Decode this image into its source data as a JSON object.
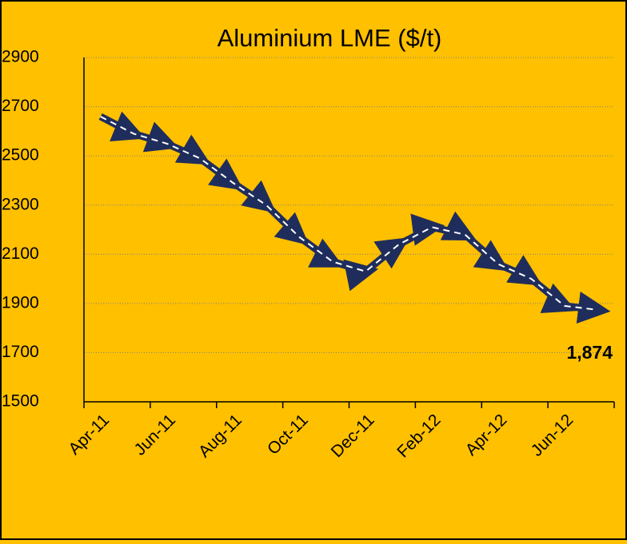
{
  "chart_data": {
    "type": "line",
    "title": "Aluminium LME ($/t)",
    "categories": [
      "Apr-11",
      null,
      "Jun-11",
      null,
      "Aug-11",
      null,
      "Oct-11",
      null,
      "Dec-11",
      null,
      "Feb-12",
      null,
      "Apr-12",
      null,
      "Jun-12",
      null
    ],
    "series": [
      {
        "name": "Aluminium LME",
        "color": "#1f2d5c",
        "values": [
          2660,
          2590,
          2550,
          2490,
          2390,
          2300,
          2170,
          2070,
          2030,
          2140,
          2210,
          2180,
          2060,
          2000,
          1890,
          1874
        ],
        "value_labels": [
          null,
          null,
          null,
          null,
          null,
          null,
          null,
          null,
          null,
          null,
          null,
          null,
          null,
          null,
          null,
          "1,874"
        ]
      }
    ],
    "ylim": [
      1500,
      2900
    ],
    "yticks": [
      1500,
      1700,
      1900,
      2100,
      2300,
      2500,
      2700,
      2900
    ],
    "grid": true
  }
}
